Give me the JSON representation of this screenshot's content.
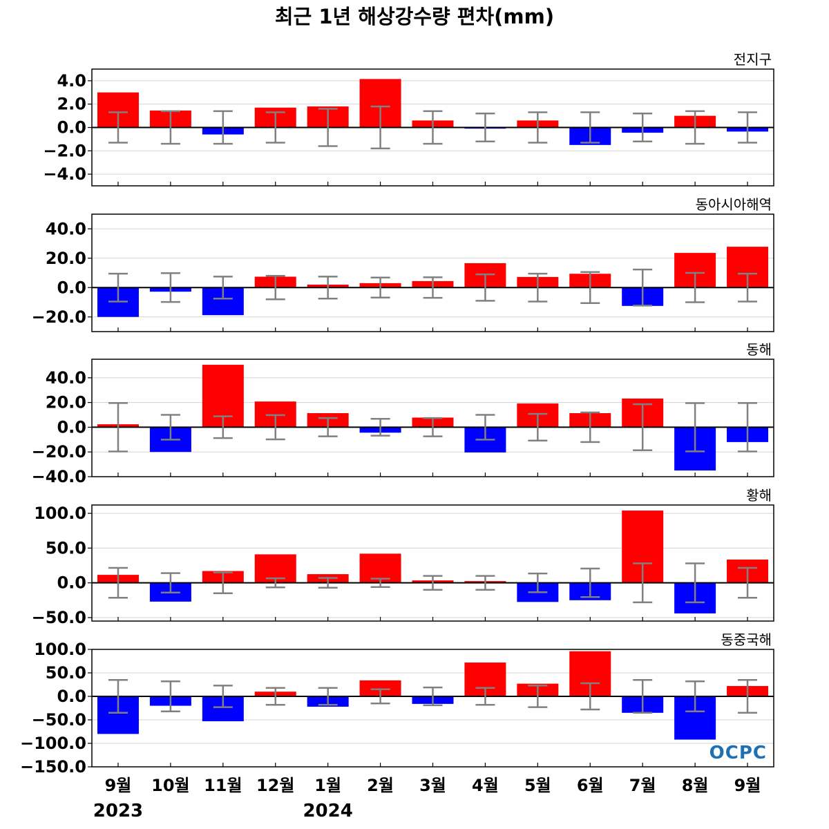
{
  "title": "최근 1년 해상강수량 편차(mm)",
  "logo": "OCPC",
  "months": [
    "9월",
    "10월",
    "11월",
    "12월",
    "1월",
    "2월",
    "3월",
    "4월",
    "5월",
    "6월",
    "7월",
    "8월",
    "9월"
  ],
  "year_labels": [
    {
      "index": 0,
      "text": "2023"
    },
    {
      "index": 4,
      "text": "2024"
    }
  ],
  "colors": {
    "positive": "#ff0000",
    "negative": "#0000ff",
    "error_bar": "#808080",
    "grid": "#d3d3d3",
    "axis": "#000000"
  },
  "chart_data": [
    {
      "type": "bar",
      "region": "전지구",
      "categories": [
        "9월",
        "10월",
        "11월",
        "12월",
        "1월",
        "2월",
        "3월",
        "4월",
        "5월",
        "6월",
        "7월",
        "8월",
        "9월"
      ],
      "values": [
        3.0,
        1.45,
        -0.6,
        1.7,
        1.8,
        4.15,
        0.6,
        -0.1,
        0.6,
        -1.5,
        -0.45,
        1.0,
        -0.35
      ],
      "error_range": [
        1.3,
        1.4,
        1.4,
        1.3,
        1.6,
        1.8,
        1.4,
        1.2,
        1.3,
        1.3,
        1.2,
        1.4,
        1.3
      ],
      "ylim": [
        -5.0,
        5.0
      ],
      "yticks": [
        4.0,
        2.0,
        0.0,
        -2.0,
        -4.0
      ],
      "ytick_labels": [
        "4.0",
        "2.0",
        "0.0",
        "−2.0",
        "−4.0"
      ],
      "grid": true
    },
    {
      "type": "bar",
      "region": "동아시아해역",
      "categories": [
        "9월",
        "10월",
        "11월",
        "12월",
        "1월",
        "2월",
        "3월",
        "4월",
        "5월",
        "6월",
        "7월",
        "8월",
        "9월"
      ],
      "values": [
        -20.0,
        -2.8,
        -18.8,
        7.4,
        2.0,
        3.0,
        4.4,
        16.6,
        7.2,
        9.4,
        -12.5,
        23.6,
        27.8
      ],
      "error_range": [
        9.5,
        9.8,
        7.5,
        8.0,
        7.5,
        6.8,
        7.0,
        9.0,
        9.5,
        10.6,
        12.3,
        10.0,
        9.5
      ],
      "ylim": [
        -30.0,
        50.0
      ],
      "yticks": [
        40.0,
        20.0,
        0.0,
        -20.0
      ],
      "ytick_labels": [
        "40.0",
        "20.0",
        "0.0",
        "−20.0"
      ],
      "grid": true
    },
    {
      "type": "bar",
      "region": "동해",
      "categories": [
        "9월",
        "10월",
        "11월",
        "12월",
        "1월",
        "2월",
        "3월",
        "4월",
        "5월",
        "6월",
        "7월",
        "8월",
        "9월"
      ],
      "values": [
        2.4,
        -20.0,
        50.5,
        20.8,
        11.4,
        -4.4,
        7.8,
        -20.4,
        19.2,
        11.4,
        23.2,
        -35.0,
        -12.0
      ],
      "error_range": [
        19.6,
        10.0,
        8.8,
        9.8,
        7.4,
        6.8,
        7.4,
        10.0,
        10.8,
        12.0,
        18.6,
        19.5,
        19.6
      ],
      "ylim": [
        -40.0,
        55.0
      ],
      "yticks": [
        40.0,
        20.0,
        0.0,
        -20.0,
        -40.0
      ],
      "ytick_labels": [
        "40.0",
        "20.0",
        "0.0",
        "−20.0",
        "−40.0"
      ],
      "grid": true
    },
    {
      "type": "bar",
      "region": "황해",
      "categories": [
        "9월",
        "10월",
        "11월",
        "12월",
        "1월",
        "2월",
        "3월",
        "4월",
        "5월",
        "6월",
        "7월",
        "8월",
        "9월"
      ],
      "values": [
        11.5,
        -27.0,
        17.0,
        41.0,
        12.5,
        42.0,
        3.5,
        2.5,
        -27.5,
        -25.0,
        104.0,
        -44.0,
        33.5
      ],
      "error_range": [
        21.5,
        14.0,
        15.0,
        6.5,
        7.0,
        6.0,
        10.0,
        10.0,
        13.5,
        20.5,
        28.0,
        28.0,
        21.5
      ],
      "ylim": [
        -55.0,
        112.0
      ],
      "yticks": [
        100.0,
        50.0,
        0.0,
        -50.0
      ],
      "ytick_labels": [
        "100.0",
        "50.0",
        "0.0",
        "−50.0"
      ],
      "grid": true
    },
    {
      "type": "bar",
      "region": "동중국해",
      "categories": [
        "9월",
        "10월",
        "11월",
        "12월",
        "1월",
        "2월",
        "3월",
        "4월",
        "5월",
        "6월",
        "7월",
        "8월",
        "9월"
      ],
      "values": [
        -80.0,
        -20.0,
        -53.0,
        10.0,
        -22.0,
        34.0,
        -16.0,
        72.0,
        27.0,
        96.0,
        -35.0,
        -92.0,
        22.0
      ],
      "error_range": [
        35.0,
        32.0,
        23.0,
        18.0,
        18.0,
        15.0,
        19.0,
        18.0,
        23.0,
        28.0,
        35.0,
        32.0,
        35.0
      ],
      "ylim": [
        -150.0,
        100.0
      ],
      "yticks": [
        100.0,
        50.0,
        0.0,
        -50.0,
        -100.0,
        -150.0
      ],
      "ytick_labels": [
        "100.0",
        "50.0",
        "0.0",
        "−50.0",
        "−100.0",
        "−150.0"
      ],
      "grid": true
    }
  ]
}
